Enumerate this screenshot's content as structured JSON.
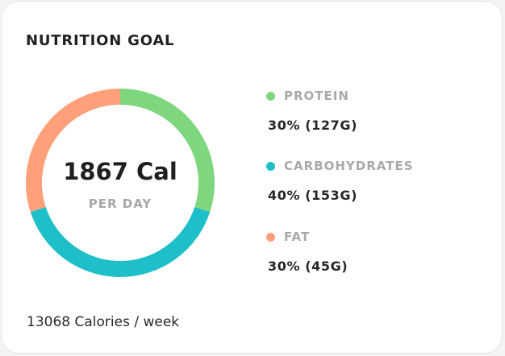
{
  "card": {
    "title": "NUTRITION GOAL",
    "total": "1867 Cal",
    "per": "PER DAY",
    "footer": "13068 Calories / week"
  },
  "chart_data": {
    "type": "pie",
    "categories": [
      "PROTEIN",
      "CARBOHYDRATES",
      "FAT"
    ],
    "values": [
      30,
      40,
      30
    ],
    "colors": [
      "#7ed67e",
      "#1ebfc8",
      "#ffa07a"
    ],
    "style": "donut"
  },
  "legend": [
    {
      "label": "PROTEIN",
      "value": "30% (127G)",
      "color": "#7ed67e"
    },
    {
      "label": "CARBOHYDRATES",
      "value": "40% (153G)",
      "color": "#1ebfc8"
    },
    {
      "label": "FAT",
      "value": "30% (45G)",
      "color": "#ffa07a"
    }
  ]
}
